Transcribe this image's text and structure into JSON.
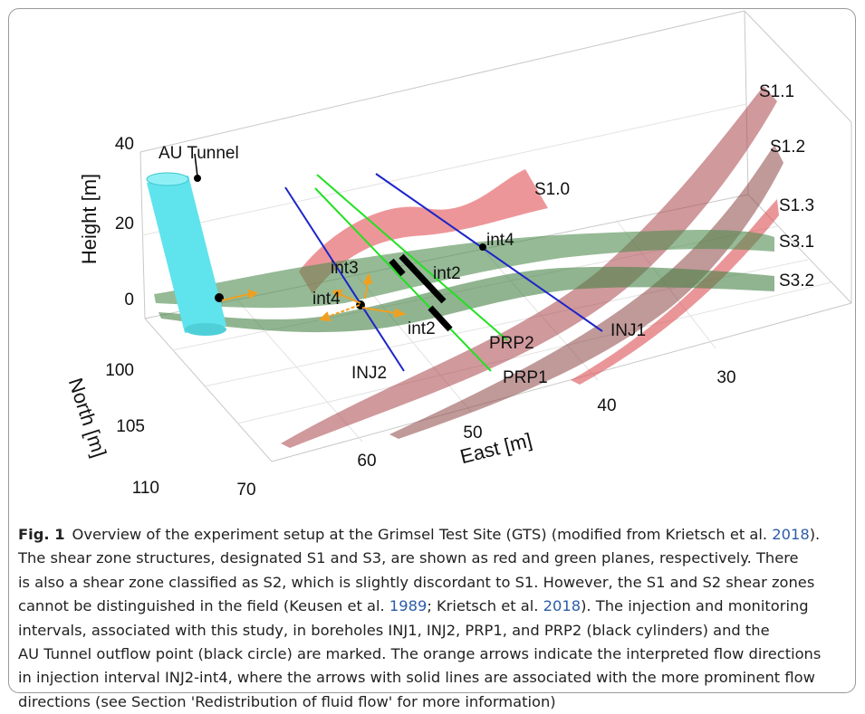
{
  "figure": {
    "axes": {
      "height_label": "Height [m]",
      "north_label": "North [m]",
      "east_label": "East [m]",
      "height_ticks": [
        "40",
        "20",
        "0"
      ],
      "north_ticks": [
        "100",
        "105",
        "110"
      ],
      "east_ticks": [
        "70",
        "60",
        "50",
        "40",
        "30"
      ]
    },
    "labels": [
      "AU Tunnel",
      "S1.0",
      "S1.1",
      "S1.2",
      "S1.3",
      "S3.1",
      "S3.2",
      "int4",
      "int3",
      "int2",
      "int4",
      "int2",
      "INJ1",
      "INJ2",
      "PRP1",
      "PRP2"
    ]
  },
  "caption": {
    "label": "Fig. 1",
    "lines": [
      [
        {
          "text": "Overview of the experiment setup at the Grimsel Test Site (GTS) (modified from Krietsch et al. "
        },
        {
          "text": "2018",
          "link": true
        },
        {
          "text": ")."
        }
      ],
      [
        {
          "text": "The shear zone structures, designated S1 and S3, are shown as red and green planes, respectively. There"
        }
      ],
      [
        {
          "text": "is also a shear zone classified as S2, which is slightly discordant to S1. However, the S1 and S2 shear zones"
        }
      ],
      [
        {
          "text": "cannot be distinguished in the field (Keusen et al. "
        },
        {
          "text": "1989",
          "link": true
        },
        {
          "text": "; Krietsch et al. "
        },
        {
          "text": "2018",
          "link": true
        },
        {
          "text": "). The injection and monitoring"
        }
      ],
      [
        {
          "text": "intervals, associated with this study, in boreholes INJ1, INJ2, PRP1, and PRP2 (black cylinders) and the"
        }
      ],
      [
        {
          "text": "AU Tunnel outflow point (black circle) are marked. The orange arrows indicate the interpreted flow directions"
        }
      ],
      [
        {
          "text": "in injection interval INJ2-int4, where the arrows with solid lines are associated with the more prominent flow"
        }
      ],
      [
        {
          "text": "directions (see Section 'Redistribution of fluid flow' for more information)"
        }
      ]
    ]
  }
}
